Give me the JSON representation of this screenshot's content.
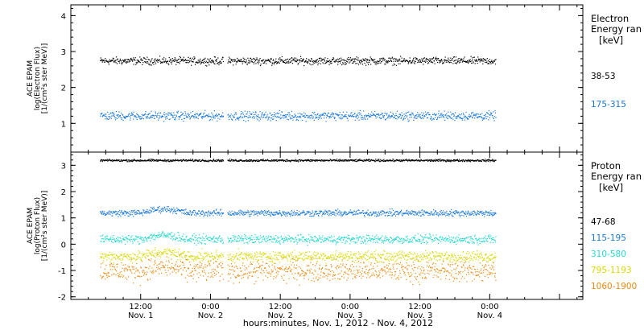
{
  "figure": {
    "xlabel": "hours:minutes, Nov.  1, 2012 - Nov.  4, 2012",
    "x_range_hours": [
      0,
      88
    ],
    "x_ticks": [
      {
        "hour": 12,
        "time": "12:00",
        "date": "Nov. 1"
      },
      {
        "hour": 24,
        "time": "0:00",
        "date": "Nov. 2"
      },
      {
        "hour": 36,
        "time": "12:00",
        "date": "Nov. 2"
      },
      {
        "hour": 48,
        "time": "0:00",
        "date": "Nov. 3"
      },
      {
        "hour": 60,
        "time": "12:00",
        "date": "Nov. 3"
      },
      {
        "hour": 72,
        "time": "0:00",
        "date": "Nov. 4"
      }
    ],
    "data_gap_hours": [
      26.2,
      26.9
    ]
  },
  "chart_data": [
    {
      "type": "scatter",
      "panel": "electron",
      "ylabel_lines": [
        "ACE EPAM",
        "log(Electron Flux)",
        "[1/(cm²s ster MeV)]"
      ],
      "ylim": [
        0.2,
        4.3
      ],
      "yticks": [
        1,
        2,
        3,
        4
      ],
      "legend_title_lines": [
        "Electron",
        "Energy ran",
        "[keV]"
      ],
      "series": [
        {
          "name": "38-53",
          "color": "#000000",
          "mean_log_flux": 2.75,
          "scatter": 0.05
        },
        {
          "name": "175-315",
          "color": "#1a78d8",
          "mean_log_flux": 1.22,
          "scatter": 0.06
        }
      ]
    },
    {
      "type": "scatter",
      "panel": "proton",
      "ylabel_lines": [
        "ACE EPAM",
        "log(Proton Flux)",
        "[1/(cm²s ster MeV)]"
      ],
      "ylim": [
        -2.1,
        3.5
      ],
      "yticks": [
        -2,
        -1,
        0,
        1,
        2,
        3
      ],
      "legend_title_lines": [
        "Proton",
        "Energy ran",
        "[keV]"
      ],
      "series": [
        {
          "name": "47-68",
          "color": "#000000",
          "mean_log_flux": 3.2,
          "scatter": 0.02
        },
        {
          "name": "115-195",
          "color": "#1a78d8",
          "mean_log_flux": 1.2,
          "scatter": 0.06
        },
        {
          "name": "310-580",
          "color": "#22d8cc",
          "mean_log_flux": 0.2,
          "scatter": 0.08
        },
        {
          "name": "795-1193",
          "color": "#d8d800",
          "mean_log_flux": -0.45,
          "scatter": 0.1
        },
        {
          "name": "1060-1900",
          "color": "#e88a10",
          "mean_log_flux": -1.0,
          "scatter": 0.2
        }
      ]
    }
  ]
}
